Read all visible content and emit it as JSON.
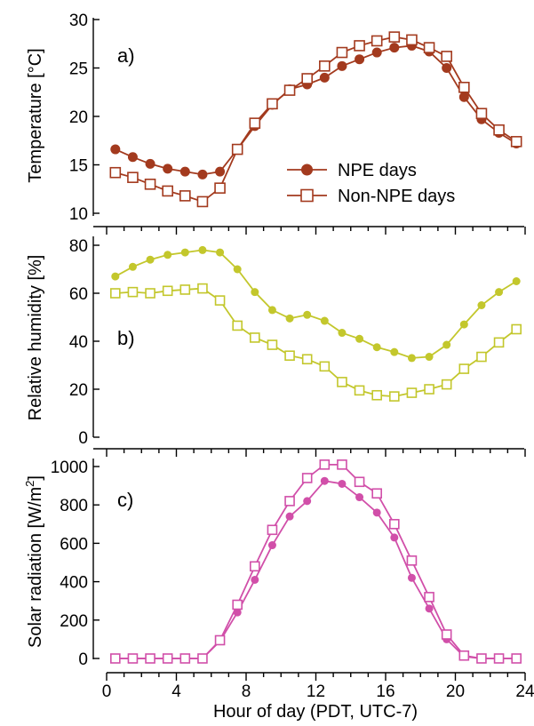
{
  "chart_data": [
    {
      "type": "line",
      "panel_label": "a)",
      "ylabel": "Temperature [°C]",
      "ylim": [
        10,
        30
      ],
      "yticks": [
        10,
        15,
        20,
        25,
        30
      ],
      "color": "#a33a1e",
      "x": [
        0.5,
        1.5,
        2.5,
        3.5,
        4.5,
        5.5,
        6.5,
        7.5,
        8.5,
        9.5,
        10.5,
        11.5,
        12.5,
        13.5,
        14.5,
        15.5,
        16.5,
        17.5,
        18.5,
        19.5,
        20.5,
        21.5,
        22.5,
        23.5
      ],
      "series": [
        {
          "name": "NPE days",
          "marker": "filled-circle",
          "values": [
            16.6,
            15.8,
            15.1,
            14.6,
            14.3,
            14.0,
            14.3,
            16.6,
            19.0,
            21.2,
            22.8,
            23.3,
            24.0,
            25.2,
            25.9,
            26.6,
            27.1,
            27.3,
            26.7,
            25.0,
            22.0,
            19.7,
            18.3,
            17.2
          ]
        },
        {
          "name": "Non-NPE days",
          "marker": "open-square",
          "values": [
            14.2,
            13.7,
            13.0,
            12.3,
            11.8,
            11.2,
            12.6,
            16.6,
            19.3,
            21.3,
            22.7,
            23.9,
            25.2,
            26.6,
            27.3,
            27.8,
            28.2,
            27.9,
            27.1,
            26.2,
            23.0,
            20.3,
            18.6,
            17.4
          ]
        }
      ],
      "legend": "center-right"
    },
    {
      "type": "line",
      "panel_label": "b)",
      "ylabel": "Relative humidity [%]",
      "ylim": [
        0,
        80
      ],
      "yticks": [
        0,
        20,
        40,
        60,
        80
      ],
      "color": "#c3c72c",
      "x": [
        0.5,
        1.5,
        2.5,
        3.5,
        4.5,
        5.5,
        6.5,
        7.5,
        8.5,
        9.5,
        10.5,
        11.5,
        12.5,
        13.5,
        14.5,
        15.5,
        16.5,
        17.5,
        18.5,
        19.5,
        20.5,
        21.5,
        22.5,
        23.5
      ],
      "series": [
        {
          "name": "NPE days",
          "marker": "filled-circle",
          "values": [
            67,
            71,
            74,
            76,
            77,
            78,
            77,
            70,
            60.5,
            53,
            49.5,
            51,
            48.5,
            43.5,
            41,
            37.5,
            35.5,
            33,
            33.5,
            38.5,
            47,
            55,
            60.5,
            65
          ]
        },
        {
          "name": "Non-NPE days",
          "marker": "open-square",
          "values": [
            60,
            60.5,
            60,
            61,
            61.5,
            62,
            57,
            46.5,
            41.5,
            38.5,
            34,
            32.5,
            29.5,
            23,
            19.5,
            17.5,
            17,
            18.5,
            20,
            22,
            28.5,
            33.5,
            39.5,
            45
          ]
        }
      ]
    },
    {
      "type": "line",
      "panel_label": "c)",
      "ylabel_prefix": "Solar radiation [W/m",
      "ylabel_sup": "2",
      "ylabel_suffix": "]",
      "ylim": [
        0,
        1000
      ],
      "yticks": [
        0,
        200,
        400,
        600,
        800,
        1000
      ],
      "color": "#d14fa9",
      "xlabel": "Hour of day (PDT, UTC-7)",
      "xlim": [
        0,
        24
      ],
      "xticks": [
        0,
        4,
        8,
        12,
        16,
        20,
        24
      ],
      "x": [
        0.5,
        1.5,
        2.5,
        3.5,
        4.5,
        5.5,
        6.5,
        7.5,
        8.5,
        9.5,
        10.5,
        11.5,
        12.5,
        13.5,
        14.5,
        15.5,
        16.5,
        17.5,
        18.5,
        19.5,
        20.5,
        21.5,
        22.5,
        23.5
      ],
      "series": [
        {
          "name": "NPE days",
          "marker": "filled-circle",
          "values": [
            0,
            0,
            0,
            0,
            0,
            0,
            90,
            240,
            410,
            590,
            740,
            820,
            925,
            910,
            840,
            760,
            630,
            420,
            260,
            100,
            10,
            0,
            0,
            0
          ]
        },
        {
          "name": "Non-NPE days",
          "marker": "open-square",
          "values": [
            0,
            0,
            0,
            0,
            0,
            0,
            95,
            280,
            480,
            670,
            820,
            940,
            1010,
            1010,
            920,
            860,
            700,
            510,
            320,
            125,
            15,
            0,
            0,
            0
          ]
        }
      ]
    }
  ]
}
